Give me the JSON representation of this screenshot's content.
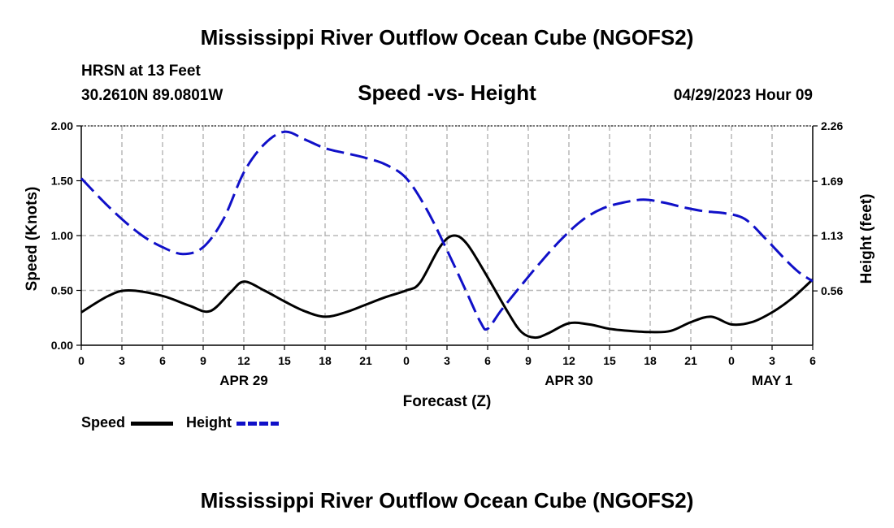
{
  "title": "Mississippi River Outflow Ocean Cube (NGOFS2)",
  "footer_title": "Mississippi River Outflow Ocean Cube (NGOFS2)",
  "station": {
    "name": "HRSN at 13 Feet",
    "coords": "30.2610N  89.0801W"
  },
  "date_label": "04/29/2023 Hour 09",
  "colors": {
    "speed": "#000000",
    "height": "#1010c8",
    "grid": "#b8b8b8"
  },
  "legend": {
    "speed": "Speed",
    "height": "Height"
  },
  "chart_data": {
    "type": "line",
    "title": "Speed -vs- Height",
    "xlabel": "Forecast (Z)",
    "ylabel": "Speed (Knots)",
    "y2label": "Height (feet)",
    "x_range": [
      0,
      54
    ],
    "ylim": [
      0,
      2
    ],
    "y2lim": [
      0,
      2.26
    ],
    "x_ticks": [
      0,
      3,
      6,
      9,
      12,
      15,
      18,
      21,
      24,
      27,
      30,
      33,
      36,
      39,
      42,
      45,
      48,
      51,
      54
    ],
    "x_tick_labels": [
      "0",
      "3",
      "6",
      "9",
      "12",
      "15",
      "18",
      "21",
      "0",
      "3",
      "6",
      "9",
      "12",
      "15",
      "18",
      "21",
      "0",
      "3",
      "6"
    ],
    "y_ticks": [
      "0.00",
      "0.50",
      "1.00",
      "1.50",
      "2.00"
    ],
    "y2_ticks": [
      "0.56",
      "1.13",
      "1.69",
      "2.26"
    ],
    "date_labels": [
      {
        "label": "APR 29",
        "x": 12
      },
      {
        "label": "APR 30",
        "x": 36
      },
      {
        "label": "MAY 1",
        "x": 51
      }
    ],
    "series": [
      {
        "name": "Speed",
        "axis": "left",
        "x": [
          0,
          2,
          3.5,
          6,
          8,
          9.5,
          11,
          12,
          13.5,
          15,
          16.5,
          18,
          19.5,
          21,
          22.5,
          24,
          25,
          26.5,
          27.5,
          28.5,
          30,
          31.5,
          32.5,
          33.5,
          34.5,
          36,
          37.5,
          39,
          40.5,
          42,
          43.5,
          45,
          46.5,
          48,
          49.5,
          51,
          52.5,
          54
        ],
        "values": [
          0.3,
          0.45,
          0.5,
          0.45,
          0.36,
          0.31,
          0.48,
          0.58,
          0.5,
          0.4,
          0.31,
          0.26,
          0.3,
          0.37,
          0.44,
          0.5,
          0.57,
          0.9,
          1.0,
          0.92,
          0.62,
          0.3,
          0.12,
          0.07,
          0.11,
          0.2,
          0.19,
          0.15,
          0.13,
          0.12,
          0.13,
          0.21,
          0.26,
          0.19,
          0.21,
          0.3,
          0.43,
          0.6
        ]
      },
      {
        "name": "Height",
        "axis": "right",
        "x": [
          0,
          1.5,
          3,
          4.5,
          6,
          7.5,
          9,
          10.5,
          12,
          13.5,
          15,
          16.5,
          18,
          19.5,
          21,
          22.5,
          24,
          25.5,
          27,
          28.5,
          29.5,
          30,
          31,
          32.5,
          34,
          35.5,
          37,
          38.5,
          40,
          41.5,
          43,
          44.5,
          46,
          47.5,
          49,
          50.5,
          52,
          53,
          54
        ],
        "values": [
          1.72,
          1.5,
          1.3,
          1.13,
          1.01,
          0.94,
          1.01,
          1.3,
          1.78,
          2.07,
          2.2,
          2.12,
          2.03,
          1.98,
          1.93,
          1.86,
          1.72,
          1.4,
          0.98,
          0.53,
          0.23,
          0.17,
          0.36,
          0.62,
          0.87,
          1.1,
          1.29,
          1.41,
          1.47,
          1.5,
          1.47,
          1.42,
          1.38,
          1.36,
          1.3,
          1.1,
          0.88,
          0.75,
          0.66
        ]
      }
    ]
  }
}
